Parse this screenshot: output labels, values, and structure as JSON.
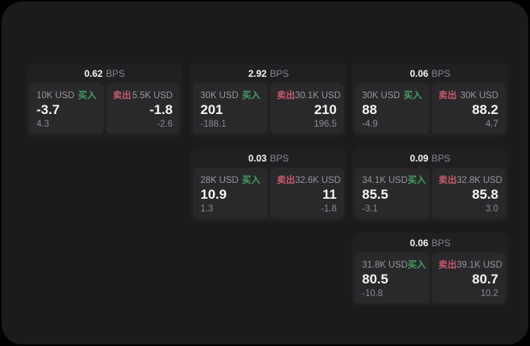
{
  "labels": {
    "buy": "买入",
    "sell": "卖出",
    "bps_unit": "BPS"
  },
  "colors": {
    "window_bg": "#1b1b1d",
    "card_bg": "#202023",
    "panel_bg": "#29292c",
    "buy_accent": "#47a060",
    "sell_accent": "#c8596b"
  },
  "cards": [
    {
      "bps": "0.62",
      "buy": {
        "size": "10K USD",
        "value": "-3.7",
        "sub": "4.3"
      },
      "sell": {
        "size": "5.5K USD",
        "value": "-1.8",
        "sub": "-2.6"
      }
    },
    {
      "bps": "2.92",
      "buy": {
        "size": "30K USD",
        "value": "201",
        "sub": "-188.1"
      },
      "sell": {
        "size": "30.1K USD",
        "value": "210",
        "sub": "196.5"
      }
    },
    {
      "bps": "0.06",
      "buy": {
        "size": "30K USD",
        "value": "88",
        "sub": "-4.9"
      },
      "sell": {
        "size": "30K USD",
        "value": "88.2",
        "sub": "4.7"
      }
    },
    {
      "bps": "0.03",
      "buy": {
        "size": "28K USD",
        "value": "10.9",
        "sub": "1.3"
      },
      "sell": {
        "size": "32.6K USD",
        "value": "11",
        "sub": "-1.8"
      }
    },
    {
      "bps": "0.09",
      "buy": {
        "size": "34.1K USD",
        "value": "85.5",
        "sub": "-3.1"
      },
      "sell": {
        "size": "32.8K USD",
        "value": "85.8",
        "sub": "3.0"
      }
    },
    {
      "bps": "0.06",
      "buy": {
        "size": "31.8K USD",
        "value": "80.5",
        "sub": "-10.8"
      },
      "sell": {
        "size": "39.1K USD",
        "value": "80.7",
        "sub": "10.2"
      }
    }
  ]
}
